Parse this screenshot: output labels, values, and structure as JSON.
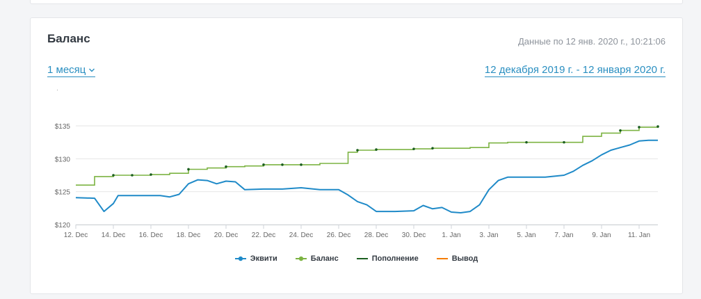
{
  "card": {
    "title": "Баланс",
    "updated_label": "Данные по 12 янв. 2020 г., 10:21:06",
    "period_label": "1 месяц",
    "range_label": "12 декабря 2019 г. - 12 января 2020 г."
  },
  "colors": {
    "equity": "#1f8ac8",
    "balance": "#7cb342",
    "deposit": "#1b5e20",
    "withdrawal": "#f57c00",
    "grid": "#e6e6e6",
    "link": "#2a8fc1"
  },
  "icons": {
    "period_dropdown": "chevron-down-icon"
  },
  "chart_data": {
    "type": "line",
    "title": "",
    "xlabel": "",
    "ylabel": "",
    "ylim": [
      120,
      135
    ],
    "xlim": [
      "2019-12-12",
      "2020-01-12"
    ],
    "y_ticks": [
      {
        "value": 120,
        "label": "$120"
      },
      {
        "value": 125,
        "label": "$125"
      },
      {
        "value": 130,
        "label": "$130"
      },
      {
        "value": 135,
        "label": "$135"
      }
    ],
    "x_ticks": [
      {
        "value": "2019-12-12",
        "label": "12. Dec"
      },
      {
        "value": "2019-12-14",
        "label": "14. Dec"
      },
      {
        "value": "2019-12-16",
        "label": "16. Dec"
      },
      {
        "value": "2019-12-18",
        "label": "18. Dec"
      },
      {
        "value": "2019-12-20",
        "label": "20. Dec"
      },
      {
        "value": "2019-12-22",
        "label": "22. Dec"
      },
      {
        "value": "2019-12-24",
        "label": "24. Dec"
      },
      {
        "value": "2019-12-26",
        "label": "26. Dec"
      },
      {
        "value": "2019-12-28",
        "label": "28. Dec"
      },
      {
        "value": "2019-12-30",
        "label": "30. Dec"
      },
      {
        "value": "2020-01-01",
        "label": "1. Jan"
      },
      {
        "value": "2020-01-03",
        "label": "3. Jan"
      },
      {
        "value": "2020-01-05",
        "label": "5. Jan"
      },
      {
        "value": "2020-01-07",
        "label": "7. Jan"
      },
      {
        "value": "2020-01-09",
        "label": "9. Jan"
      },
      {
        "value": "2020-01-11",
        "label": "11. Jan"
      }
    ],
    "grid": true,
    "legend_position": "bottom-center",
    "series": [
      {
        "name": "Эквити",
        "color": "#1f8ac8",
        "style": "line",
        "x": [
          "2019-12-12",
          "2019-12-13",
          "2019-12-13 12:00",
          "2019-12-14",
          "2019-12-14 06:00",
          "2019-12-15",
          "2019-12-16",
          "2019-12-16 12:00",
          "2019-12-17",
          "2019-12-17 12:00",
          "2019-12-18",
          "2019-12-18 12:00",
          "2019-12-19",
          "2019-12-19 12:00",
          "2019-12-20",
          "2019-12-20 12:00",
          "2019-12-21",
          "2019-12-22",
          "2019-12-23",
          "2019-12-24",
          "2019-12-25",
          "2019-12-26",
          "2019-12-26 12:00",
          "2019-12-27",
          "2019-12-27 12:00",
          "2019-12-28",
          "2019-12-29",
          "2019-12-30",
          "2019-12-30 12:00",
          "2019-12-31",
          "2019-12-31 12:00",
          "2020-01-01",
          "2020-01-01 12:00",
          "2020-01-02",
          "2020-01-02 12:00",
          "2020-01-03",
          "2020-01-03 12:00",
          "2020-01-04",
          "2020-01-05",
          "2020-01-06",
          "2020-01-07",
          "2020-01-07 12:00",
          "2020-01-08",
          "2020-01-08 12:00",
          "2020-01-09",
          "2020-01-09 12:00",
          "2020-01-10",
          "2020-01-10 12:00",
          "2020-01-11",
          "2020-01-11 12:00",
          "2020-01-12"
        ],
        "values": [
          124.1,
          124.0,
          122.0,
          123.2,
          124.4,
          124.4,
          124.4,
          124.4,
          124.2,
          124.6,
          126.2,
          126.8,
          126.7,
          126.2,
          126.6,
          126.5,
          125.3,
          125.4,
          125.4,
          125.6,
          125.3,
          125.3,
          124.5,
          123.5,
          123.0,
          122.0,
          122.0,
          122.1,
          122.9,
          122.4,
          122.6,
          121.9,
          121.8,
          122.0,
          123.0,
          125.3,
          126.7,
          127.2,
          127.2,
          127.2,
          127.5,
          128.1,
          129.0,
          129.7,
          130.6,
          131.3,
          131.7,
          132.1,
          132.7,
          132.8,
          132.8
        ]
      },
      {
        "name": "Баланс",
        "color": "#7cb342",
        "style": "step",
        "x": [
          "2019-12-12",
          "2019-12-13",
          "2019-12-14",
          "2019-12-15",
          "2019-12-16",
          "2019-12-17",
          "2019-12-18",
          "2019-12-19",
          "2019-12-20",
          "2019-12-21",
          "2019-12-22",
          "2019-12-23",
          "2019-12-24",
          "2019-12-25",
          "2019-12-26",
          "2019-12-26 12:00",
          "2019-12-27",
          "2019-12-28",
          "2019-12-29",
          "2019-12-30",
          "2019-12-31",
          "2020-01-01",
          "2020-01-02",
          "2020-01-03",
          "2020-01-04",
          "2020-01-05",
          "2020-01-06",
          "2020-01-07",
          "2020-01-08",
          "2020-01-09",
          "2020-01-10",
          "2020-01-11",
          "2020-01-12"
        ],
        "values": [
          126.0,
          127.3,
          127.5,
          127.5,
          127.6,
          127.8,
          128.4,
          128.6,
          128.8,
          128.9,
          129.1,
          129.1,
          129.1,
          129.3,
          129.3,
          131.0,
          131.3,
          131.4,
          131.4,
          131.5,
          131.6,
          131.6,
          131.7,
          132.4,
          132.5,
          132.5,
          132.5,
          132.5,
          133.4,
          133.9,
          134.3,
          134.8,
          134.9
        ]
      },
      {
        "name": "Пополнение",
        "color": "#1b5e20",
        "style": "markers",
        "x": [
          "2019-12-14",
          "2019-12-15",
          "2019-12-16",
          "2019-12-18",
          "2019-12-20",
          "2019-12-22",
          "2019-12-23",
          "2019-12-24",
          "2019-12-27",
          "2019-12-28",
          "2019-12-30",
          "2019-12-31",
          "2020-01-05",
          "2020-01-07",
          "2020-01-10",
          "2020-01-11",
          "2020-01-12"
        ],
        "values": [
          127.5,
          127.5,
          127.6,
          128.4,
          128.8,
          129.1,
          129.1,
          129.1,
          131.3,
          131.4,
          131.5,
          131.6,
          132.5,
          132.5,
          134.3,
          134.8,
          134.9
        ]
      },
      {
        "name": "Вывод",
        "color": "#f57c00",
        "style": "markers",
        "x": [],
        "values": []
      }
    ]
  }
}
